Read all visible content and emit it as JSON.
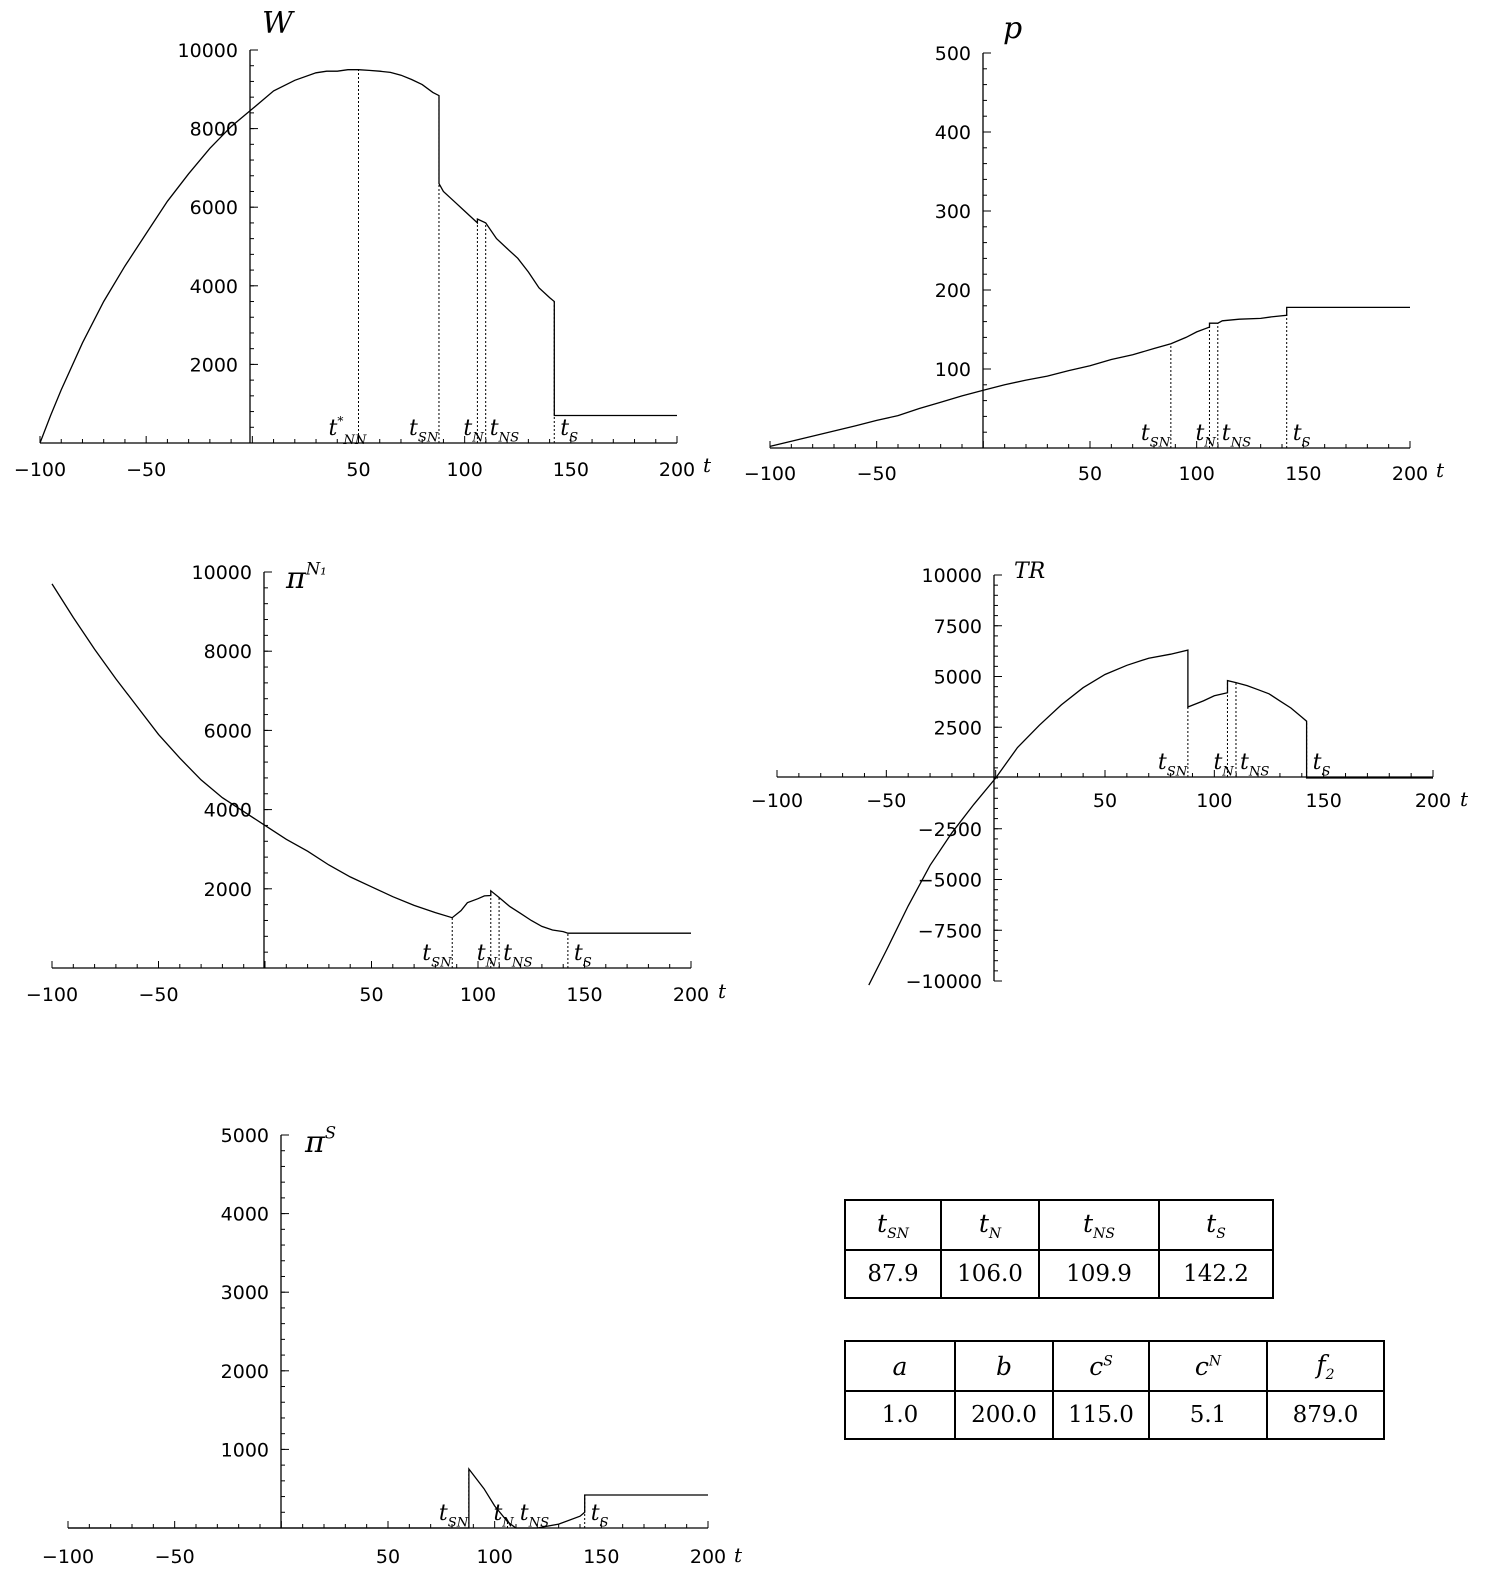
{
  "chart_data": [
    {
      "id": "W",
      "type": "line",
      "title": "W",
      "xlabel": "t",
      "ylabel": "W",
      "xlim": [
        -100,
        200
      ],
      "ylim": [
        0,
        10000
      ],
      "xticks": [
        {
          "v": -100,
          "label": "−100"
        },
        {
          "v": -50,
          "label": "−50"
        },
        {
          "v": 50,
          "label": "50"
        },
        {
          "v": 100,
          "label": "100"
        },
        {
          "v": 150,
          "label": "150"
        },
        {
          "v": 200,
          "label": "200"
        }
      ],
      "yticks": [
        {
          "v": 2000,
          "label": "2000"
        },
        {
          "v": 4000,
          "label": "4000"
        },
        {
          "v": 6000,
          "label": "6000"
        },
        {
          "v": 8000,
          "label": "8000"
        },
        {
          "v": 10000,
          "label": "10000"
        }
      ],
      "series": [
        {
          "points": [
            [
              -100,
              0
            ],
            [
              -95,
              700
            ],
            [
              -90,
              1350
            ],
            [
              -80,
              2550
            ],
            [
              -70,
              3600
            ],
            [
              -60,
              4500
            ],
            [
              -50,
              5330
            ],
            [
              -40,
              6150
            ],
            [
              -30,
              6850
            ],
            [
              -20,
              7500
            ],
            [
              -10,
              8050
            ],
            [
              0,
              8500
            ],
            [
              10,
              8960
            ],
            [
              20,
              9230
            ],
            [
              30,
              9420
            ],
            [
              35,
              9460
            ],
            [
              40,
              9460
            ],
            [
              45,
              9500
            ],
            [
              50,
              9500
            ],
            [
              55,
              9480
            ],
            [
              60,
              9460
            ],
            [
              65,
              9430
            ],
            [
              70,
              9360
            ],
            [
              75,
              9250
            ],
            [
              80,
              9120
            ],
            [
              85,
              8920
            ],
            [
              87.9,
              8840
            ],
            [
              87.9,
              6600
            ],
            [
              90,
              6400
            ],
            [
              95,
              6150
            ],
            [
              100,
              5900
            ],
            [
              106,
              5600
            ],
            [
              106,
              5700
            ],
            [
              109.9,
              5600
            ],
            [
              115,
              5200
            ],
            [
              120,
              4950
            ],
            [
              125,
              4700
            ],
            [
              130,
              4350
            ],
            [
              135,
              3950
            ],
            [
              140,
              3700
            ],
            [
              142.2,
              3600
            ],
            [
              142.2,
              700
            ],
            [
              200,
              700
            ]
          ]
        }
      ],
      "markers": [
        {
          "x": 50,
          "y": 9500,
          "label_main": "t",
          "label_sub": "NN",
          "label_sup": "*"
        },
        {
          "x": 87.9,
          "y": 8840,
          "label_main": "t",
          "label_sub": "SN"
        },
        {
          "x": 106,
          "y": 5700,
          "label_main": "t",
          "label_sub": "N"
        },
        {
          "x": 109.9,
          "y": 5600,
          "label_main": "t",
          "label_sub": "NS"
        },
        {
          "x": 142.2,
          "y": 3600,
          "label_main": "t",
          "label_sub": "S"
        }
      ]
    },
    {
      "id": "p",
      "type": "line",
      "title": "p",
      "xlabel": "t",
      "ylabel": "p",
      "xlim": [
        -100,
        200
      ],
      "ylim": [
        0,
        500
      ],
      "xticks": [
        {
          "v": -100,
          "label": "−100"
        },
        {
          "v": -50,
          "label": "−50"
        },
        {
          "v": 50,
          "label": "50"
        },
        {
          "v": 100,
          "label": "100"
        },
        {
          "v": 150,
          "label": "150"
        },
        {
          "v": 200,
          "label": "200"
        }
      ],
      "yticks": [
        {
          "v": 100,
          "label": "100"
        },
        {
          "v": 200,
          "label": "200"
        },
        {
          "v": 300,
          "label": "300"
        },
        {
          "v": 400,
          "label": "400"
        },
        {
          "v": 500,
          "label": "500"
        }
      ],
      "series": [
        {
          "points": [
            [
              -100,
              2
            ],
            [
              -80,
              15
            ],
            [
              -60,
              28
            ],
            [
              -50,
              35
            ],
            [
              -40,
              41
            ],
            [
              -30,
              50
            ],
            [
              -20,
              58
            ],
            [
              -10,
              66
            ],
            [
              0,
              73
            ],
            [
              10,
              80
            ],
            [
              20,
              86
            ],
            [
              30,
              91
            ],
            [
              40,
              98
            ],
            [
              50,
              104
            ],
            [
              60,
              112
            ],
            [
              70,
              118
            ],
            [
              80,
              126
            ],
            [
              87.9,
              132
            ],
            [
              95,
              140
            ],
            [
              100,
              147
            ],
            [
              106,
              153
            ],
            [
              106,
              158
            ],
            [
              109.9,
              158
            ],
            [
              112,
              161
            ],
            [
              120,
              163
            ],
            [
              130,
              164
            ],
            [
              135,
              166
            ],
            [
              142.2,
              168
            ],
            [
              142.2,
              178
            ],
            [
              200,
              178
            ]
          ]
        }
      ],
      "markers": [
        {
          "x": 87.9,
          "y": 132,
          "label_main": "t",
          "label_sub": "SN"
        },
        {
          "x": 106,
          "y": 158,
          "label_main": "t",
          "label_sub": "N"
        },
        {
          "x": 109.9,
          "y": 158,
          "label_main": "t",
          "label_sub": "NS"
        },
        {
          "x": 142.2,
          "y": 178,
          "label_main": "t",
          "label_sub": "S"
        }
      ]
    },
    {
      "id": "piN1",
      "type": "line",
      "title": "π^N1",
      "xlabel": "t",
      "ylabel": "π^N1",
      "xlim": [
        -100,
        200
      ],
      "ylim": [
        0,
        10000
      ],
      "xticks": [
        {
          "v": -100,
          "label": "−100"
        },
        {
          "v": -50,
          "label": "−50"
        },
        {
          "v": 50,
          "label": "50"
        },
        {
          "v": 100,
          "label": "100"
        },
        {
          "v": 150,
          "label": "150"
        },
        {
          "v": 200,
          "label": "200"
        }
      ],
      "yticks": [
        {
          "v": 2000,
          "label": "2000"
        },
        {
          "v": 4000,
          "label": "4000"
        },
        {
          "v": 6000,
          "label": "6000"
        },
        {
          "v": 8000,
          "label": "8000"
        },
        {
          "v": 10000,
          "label": "10000"
        }
      ],
      "series": [
        {
          "points": [
            [
              -100,
              9700
            ],
            [
              -90,
              8850
            ],
            [
              -80,
              8050
            ],
            [
              -70,
              7300
            ],
            [
              -60,
              6600
            ],
            [
              -50,
              5900
            ],
            [
              -40,
              5300
            ],
            [
              -30,
              4750
            ],
            [
              -20,
              4300
            ],
            [
              -10,
              3950
            ],
            [
              0,
              3600
            ],
            [
              10,
              3250
            ],
            [
              20,
              2950
            ],
            [
              30,
              2600
            ],
            [
              40,
              2300
            ],
            [
              50,
              2050
            ],
            [
              60,
              1800
            ],
            [
              70,
              1580
            ],
            [
              80,
              1400
            ],
            [
              87.9,
              1270
            ],
            [
              92,
              1450
            ],
            [
              95,
              1650
            ],
            [
              100,
              1750
            ],
            [
              103,
              1820
            ],
            [
              106,
              1830
            ],
            [
              106,
              1950
            ],
            [
              109.9,
              1780
            ],
            [
              115,
              1550
            ],
            [
              120,
              1380
            ],
            [
              125,
              1200
            ],
            [
              130,
              1050
            ],
            [
              135,
              960
            ],
            [
              140,
              920
            ],
            [
              142.2,
              880
            ],
            [
              200,
              880
            ]
          ]
        }
      ],
      "markers": [
        {
          "x": 87.9,
          "y": 1270,
          "label_main": "t",
          "label_sub": "SN"
        },
        {
          "x": 106,
          "y": 1950,
          "label_main": "t",
          "label_sub": "N"
        },
        {
          "x": 109.9,
          "y": 1780,
          "label_main": "t",
          "label_sub": "NS"
        },
        {
          "x": 142.2,
          "y": 880,
          "label_main": "t",
          "label_sub": "S"
        }
      ]
    },
    {
      "id": "TR",
      "type": "line",
      "title": "TR",
      "xlabel": "t",
      "ylabel": "TR",
      "xlim": [
        -100,
        200
      ],
      "ylim": [
        -10000,
        10000
      ],
      "xticks": [
        {
          "v": -100,
          "label": "−100"
        },
        {
          "v": -50,
          "label": "−50"
        },
        {
          "v": 50,
          "label": "50"
        },
        {
          "v": 100,
          "label": "100"
        },
        {
          "v": 150,
          "label": "150"
        },
        {
          "v": 200,
          "label": "200"
        }
      ],
      "yticks": [
        {
          "v": -10000,
          "label": "−10000"
        },
        {
          "v": -7500,
          "label": "−7500"
        },
        {
          "v": -5000,
          "label": "−5000"
        },
        {
          "v": -2500,
          "label": "−2500"
        },
        {
          "v": 2500,
          "label": "2500"
        },
        {
          "v": 5000,
          "label": "5000"
        },
        {
          "v": 7500,
          "label": "7500"
        },
        {
          "v": 10000,
          "label": "10000"
        }
      ],
      "series": [
        {
          "points": [
            [
              -58,
              -10200
            ],
            [
              -50,
              -8500
            ],
            [
              -40,
              -6300
            ],
            [
              -30,
              -4300
            ],
            [
              -20,
              -2700
            ],
            [
              -10,
              -1300
            ],
            [
              0,
              0
            ],
            [
              10,
              1500
            ],
            [
              20,
              2600
            ],
            [
              30,
              3600
            ],
            [
              40,
              4450
            ],
            [
              50,
              5100
            ],
            [
              60,
              5550
            ],
            [
              70,
              5900
            ],
            [
              80,
              6100
            ],
            [
              87.9,
              6300
            ],
            [
              87.9,
              3500
            ],
            [
              95,
              3800
            ],
            [
              100,
              4050
            ],
            [
              106,
              4200
            ],
            [
              106,
              4800
            ],
            [
              109.9,
              4700
            ],
            [
              115,
              4550
            ],
            [
              120,
              4350
            ],
            [
              125,
              4150
            ],
            [
              130,
              3800
            ],
            [
              135,
              3450
            ],
            [
              140,
              3000
            ],
            [
              142.2,
              2800
            ],
            [
              142.2,
              0
            ],
            [
              200,
              0
            ]
          ]
        }
      ],
      "markers": [
        {
          "x": 87.9,
          "y": 3500,
          "label_main": "t",
          "label_sub": "SN"
        },
        {
          "x": 106,
          "y": 4800,
          "label_main": "t",
          "label_sub": "N"
        },
        {
          "x": 109.9,
          "y": 4700,
          "label_main": "t",
          "label_sub": "NS"
        },
        {
          "x": 142.2,
          "y": 2800,
          "label_main": "t",
          "label_sub": "S"
        }
      ]
    },
    {
      "id": "piS",
      "type": "line",
      "title": "π^S",
      "xlabel": "t",
      "ylabel": "π^S",
      "xlim": [
        -100,
        200
      ],
      "ylim": [
        0,
        5000
      ],
      "xticks": [
        {
          "v": -100,
          "label": "−100"
        },
        {
          "v": -50,
          "label": "−50"
        },
        {
          "v": 50,
          "label": "50"
        },
        {
          "v": 100,
          "label": "100"
        },
        {
          "v": 150,
          "label": "150"
        },
        {
          "v": 200,
          "label": "200"
        }
      ],
      "yticks": [
        {
          "v": 1000,
          "label": "1000"
        },
        {
          "v": 2000,
          "label": "2000"
        },
        {
          "v": 3000,
          "label": "3000"
        },
        {
          "v": 4000,
          "label": "4000"
        },
        {
          "v": 5000,
          "label": "5000"
        }
      ],
      "series": [
        {
          "points": [
            [
              -100,
              0
            ],
            [
              87.9,
              0
            ],
            [
              87.9,
              0
            ],
            [
              87.9,
              750
            ],
            [
              95,
              500
            ],
            [
              100,
              280
            ],
            [
              106,
              80
            ],
            [
              109.9,
              0
            ],
            [
              120,
              0
            ],
            [
              130,
              50
            ],
            [
              140,
              150
            ],
            [
              142.2,
              200
            ],
            [
              142.2,
              420
            ],
            [
              200,
              420
            ]
          ]
        }
      ],
      "markers": [
        {
          "x": 87.9,
          "y": 750,
          "label_main": "t",
          "label_sub": "SN"
        },
        {
          "x": 106,
          "y": 80,
          "label_main": "t",
          "label_sub": "N"
        },
        {
          "x": 109.9,
          "y": 0,
          "label_main": "t",
          "label_sub": "NS"
        },
        {
          "x": 142.2,
          "y": 420,
          "label_main": "t",
          "label_sub": "S"
        }
      ]
    }
  ],
  "tables": {
    "thresholds": {
      "headers": [
        {
          "main": "t",
          "sub": "SN"
        },
        {
          "main": "t",
          "sub": "N"
        },
        {
          "main": "t",
          "sub": "NS"
        },
        {
          "main": "t",
          "sub": "S"
        }
      ],
      "values": [
        "87.9",
        "106.0",
        "109.9",
        "142.2"
      ]
    },
    "parameters": {
      "headers": [
        {
          "main": "a"
        },
        {
          "main": "b"
        },
        {
          "main": "c",
          "sup": "S"
        },
        {
          "main": "c",
          "sup": "N"
        },
        {
          "main": "f",
          "sub": "2"
        }
      ],
      "values": [
        "1.0",
        "200.0",
        "115.0",
        "5.1",
        "879.0"
      ]
    }
  }
}
